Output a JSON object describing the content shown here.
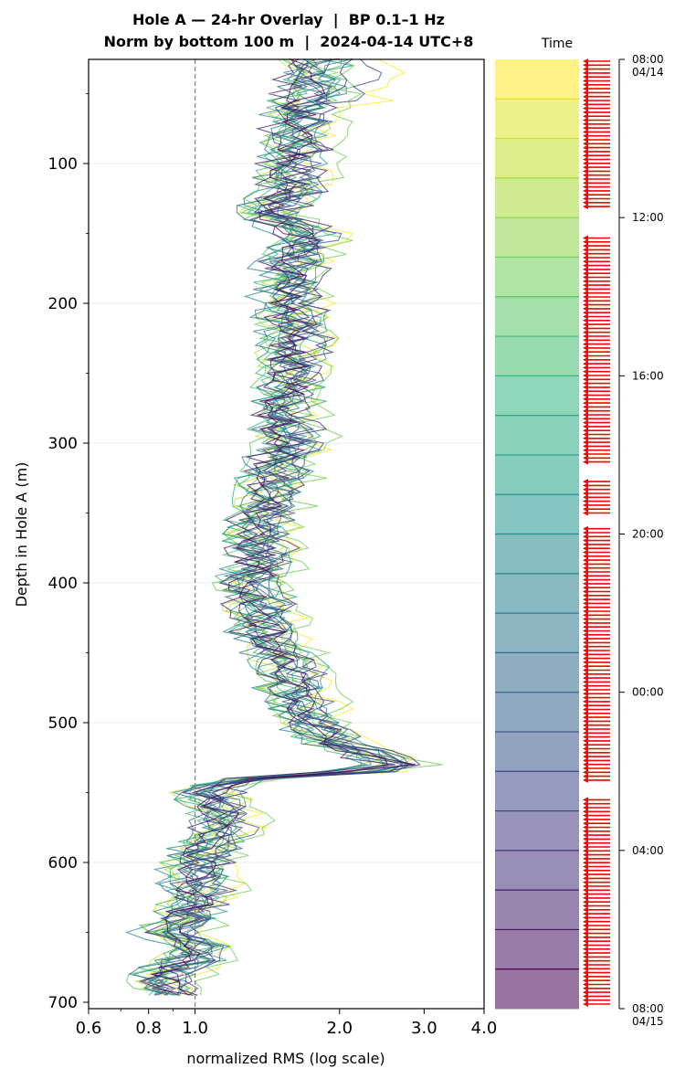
{
  "title_line1": "Hole A — 24-hr Overlay  |  BP 0.1–1 Hz",
  "title_line2": "Norm by bottom 100 m  |  2024-04-14 UTC+8",
  "chart_data": {
    "type": "line",
    "xlabel": "normalized RMS  (log scale)",
    "ylabel": "Depth in Hole A (m)",
    "x_scale": "log",
    "xlim": [
      0.6,
      4.0
    ],
    "ylim": [
      705,
      20
    ],
    "x_ticks": [
      "0.6",
      "0.8",
      "1.0",
      "2.0",
      "3.0",
      "4.0"
    ],
    "y_ticks": [
      "100",
      "200",
      "300",
      "400",
      "500",
      "600",
      "700"
    ],
    "reference_line": {
      "x": 1.0,
      "style": "dashed"
    },
    "grid": "horizontal",
    "colormap": "viridis",
    "series_count": 24,
    "mean_profile": {
      "depth": [
        25,
        40,
        60,
        80,
        100,
        120,
        135,
        150,
        165,
        180,
        200,
        220,
        240,
        260,
        280,
        300,
        320,
        340,
        360,
        380,
        400,
        420,
        440,
        460,
        480,
        500,
        515,
        525,
        530,
        535,
        540,
        545,
        550,
        560,
        575,
        590,
        600,
        620,
        640,
        650,
        660,
        670,
        680,
        690,
        695
      ],
      "rms": [
        1.75,
        1.7,
        1.65,
        1.6,
        1.58,
        1.55,
        1.4,
        1.7,
        1.6,
        1.55,
        1.55,
        1.6,
        1.58,
        1.55,
        1.5,
        1.55,
        1.45,
        1.4,
        1.35,
        1.35,
        1.3,
        1.35,
        1.4,
        1.55,
        1.6,
        1.75,
        1.95,
        2.4,
        2.6,
        2.2,
        1.3,
        1.1,
        1.05,
        1.1,
        1.15,
        1.05,
        1.0,
        1.0,
        0.95,
        0.85,
        1.0,
        0.95,
        0.85,
        0.85,
        0.9
      ]
    }
  },
  "colorbar": {
    "label": "Time",
    "tick_labels": [
      "08:00\n04/14",
      "12:00",
      "16:00",
      "20:00",
      "00:00",
      "04:00",
      "08:00\n04/15"
    ],
    "start_color": "#fde725",
    "end_color": "#440154",
    "marker_color": "#ff0000",
    "bands": 24
  }
}
